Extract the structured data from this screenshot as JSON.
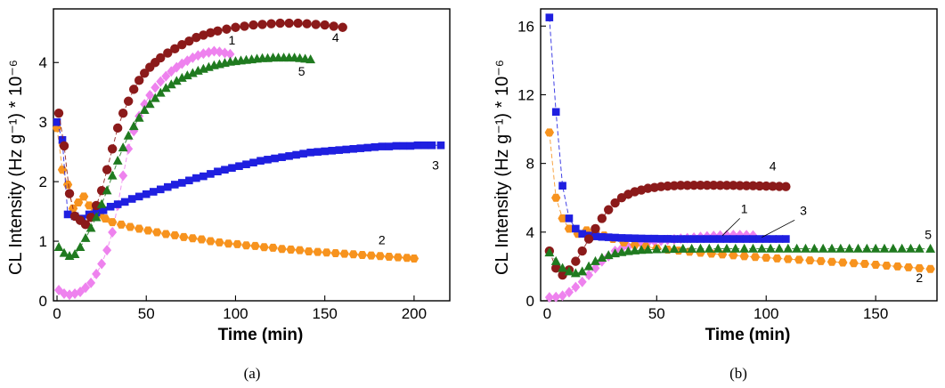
{
  "colors": {
    "1": "#ee82ee",
    "2": "#f7931e",
    "3": "#1f1fe0",
    "4": "#8b1a1a",
    "5": "#1f7a1f"
  },
  "chart_data": [
    {
      "panel": "(a)",
      "type": "scatter",
      "title": "",
      "xlabel": "Time (min)",
      "ylabel": "CL Intensity (Hz g⁻¹) * 10⁻⁶",
      "xlim": [
        -2,
        220
      ],
      "ylim": [
        0,
        4.9
      ],
      "x_ticks": [
        0,
        50,
        100,
        150,
        200
      ],
      "y_ticks": [
        0,
        1,
        2,
        3,
        4
      ],
      "series": [
        {
          "name": "1",
          "marker": "diamond",
          "x": [
            1,
            4,
            7,
            10,
            13,
            16,
            19,
            22,
            25,
            28,
            31,
            34,
            37,
            40,
            43,
            46,
            49,
            52,
            55,
            58,
            61,
            64,
            67,
            70,
            73,
            76,
            79,
            82,
            85,
            88,
            91,
            94,
            97
          ],
          "y": [
            0.18,
            0.12,
            0.1,
            0.12,
            0.15,
            0.22,
            0.3,
            0.45,
            0.62,
            0.85,
            1.15,
            1.6,
            2.1,
            2.55,
            2.85,
            3.1,
            3.3,
            3.45,
            3.58,
            3.68,
            3.77,
            3.85,
            3.92,
            3.98,
            4.03,
            4.08,
            4.12,
            4.15,
            4.17,
            4.19,
            4.18,
            4.16,
            4.14
          ]
        },
        {
          "name": "2",
          "marker": "hexagon",
          "x": [
            0,
            3,
            6,
            9,
            12,
            15,
            18,
            21,
            24,
            27,
            31,
            36,
            41,
            46,
            51,
            56,
            61,
            66,
            71,
            76,
            81,
            86,
            91,
            96,
            101,
            106,
            111,
            116,
            121,
            126,
            131,
            136,
            141,
            146,
            151,
            156,
            161,
            166,
            171,
            176,
            181,
            186,
            191,
            196,
            200
          ],
          "y": [
            2.9,
            2.2,
            1.95,
            1.55,
            1.65,
            1.75,
            1.6,
            1.5,
            1.45,
            1.38,
            1.32,
            1.28,
            1.24,
            1.21,
            1.18,
            1.15,
            1.12,
            1.1,
            1.07,
            1.05,
            1.03,
            1.0,
            0.98,
            0.96,
            0.95,
            0.93,
            0.92,
            0.9,
            0.89,
            0.87,
            0.86,
            0.85,
            0.83,
            0.82,
            0.81,
            0.8,
            0.79,
            0.78,
            0.77,
            0.76,
            0.75,
            0.74,
            0.73,
            0.72,
            0.71
          ]
        },
        {
          "name": "3",
          "marker": "square",
          "x": [
            0,
            3,
            6,
            10,
            14,
            18,
            22,
            26,
            30,
            34,
            38,
            42,
            46,
            50,
            54,
            58,
            62,
            66,
            70,
            74,
            78,
            82,
            86,
            90,
            94,
            98,
            102,
            106,
            110,
            114,
            118,
            122,
            126,
            130,
            134,
            138,
            142,
            146,
            150,
            154,
            158,
            162,
            166,
            170,
            174,
            178,
            182,
            186,
            190,
            194,
            198,
            202,
            206,
            210,
            215
          ],
          "y": [
            3.0,
            2.7,
            1.45,
            1.42,
            1.38,
            1.45,
            1.48,
            1.52,
            1.58,
            1.62,
            1.66,
            1.71,
            1.75,
            1.79,
            1.83,
            1.87,
            1.91,
            1.95,
            1.98,
            2.02,
            2.06,
            2.09,
            2.13,
            2.17,
            2.2,
            2.23,
            2.26,
            2.29,
            2.32,
            2.35,
            2.37,
            2.39,
            2.41,
            2.43,
            2.45,
            2.47,
            2.49,
            2.5,
            2.51,
            2.52,
            2.53,
            2.54,
            2.55,
            2.56,
            2.57,
            2.58,
            2.59,
            2.59,
            2.6,
            2.6,
            2.6,
            2.61,
            2.61,
            2.61,
            2.61
          ]
        },
        {
          "name": "4",
          "marker": "circle",
          "x": [
            1,
            4,
            7,
            10,
            13,
            16,
            19,
            22,
            25,
            28,
            31,
            34,
            37,
            40,
            43,
            46,
            49,
            52,
            55,
            58,
            62,
            66,
            70,
            74,
            78,
            82,
            86,
            90,
            95,
            100,
            105,
            110,
            115,
            120,
            125,
            130,
            135,
            140,
            145,
            150,
            155,
            160
          ],
          "y": [
            3.15,
            2.6,
            1.8,
            1.42,
            1.35,
            1.28,
            1.4,
            1.6,
            1.85,
            2.2,
            2.55,
            2.9,
            3.15,
            3.35,
            3.55,
            3.7,
            3.82,
            3.92,
            4.0,
            4.08,
            4.16,
            4.23,
            4.3,
            4.36,
            4.42,
            4.46,
            4.5,
            4.53,
            4.56,
            4.59,
            4.61,
            4.63,
            4.64,
            4.65,
            4.66,
            4.66,
            4.66,
            4.65,
            4.64,
            4.63,
            4.61,
            4.59
          ]
        },
        {
          "name": "5",
          "marker": "triangle",
          "x": [
            1,
            4,
            7,
            10,
            13,
            16,
            19,
            22,
            25,
            28,
            31,
            34,
            37,
            40,
            43,
            46,
            49,
            52,
            55,
            58,
            61,
            64,
            67,
            70,
            73,
            76,
            79,
            82,
            85,
            88,
            91,
            94,
            97,
            100,
            103,
            106,
            109,
            112,
            115,
            118,
            121,
            124,
            127,
            130,
            133,
            136,
            139,
            142
          ],
          "y": [
            0.9,
            0.8,
            0.75,
            0.78,
            0.9,
            1.05,
            1.22,
            1.4,
            1.62,
            1.85,
            2.1,
            2.35,
            2.57,
            2.77,
            2.93,
            3.07,
            3.2,
            3.3,
            3.4,
            3.49,
            3.57,
            3.63,
            3.69,
            3.74,
            3.78,
            3.82,
            3.86,
            3.89,
            3.92,
            3.95,
            3.97,
            3.99,
            4.01,
            4.02,
            4.03,
            4.04,
            4.05,
            4.06,
            4.07,
            4.07,
            4.08,
            4.08,
            4.08,
            4.08,
            4.08,
            4.07,
            4.06,
            4.05
          ]
        }
      ],
      "curve_labels": [
        "1",
        "2",
        "3",
        "4",
        "5"
      ],
      "curve_label_positions_data": [
        {
          "name": "1",
          "x": 98,
          "y": 4.3
        },
        {
          "name": "2",
          "x": 182,
          "y": 0.95
        },
        {
          "name": "3",
          "x": 212,
          "y": 2.2
        },
        {
          "name": "4",
          "x": 156,
          "y": 4.35
        },
        {
          "name": "5",
          "x": 137,
          "y": 3.78
        }
      ]
    },
    {
      "panel": "(b)",
      "type": "scatter",
      "title": "",
      "xlabel": "Time (min)",
      "ylabel": "CL Intensity (Hz g⁻¹) * 10⁻⁶",
      "xlim": [
        -3,
        178
      ],
      "ylim": [
        0,
        17
      ],
      "x_ticks": [
        0,
        50,
        100,
        150
      ],
      "y_ticks": [
        0,
        4,
        8,
        12,
        16
      ],
      "series": [
        {
          "name": "1",
          "marker": "diamond",
          "x": [
            1,
            4,
            7,
            10,
            13,
            16,
            19,
            22,
            25,
            28,
            31,
            34,
            37,
            40,
            43,
            46,
            49,
            52,
            55,
            58,
            61,
            64,
            67,
            70,
            73,
            76,
            79,
            82,
            85,
            88,
            91,
            94
          ],
          "y": [
            0.2,
            0.22,
            0.3,
            0.5,
            0.8,
            1.1,
            1.5,
            1.9,
            2.3,
            2.6,
            2.9,
            3.05,
            3.15,
            3.25,
            3.33,
            3.4,
            3.45,
            3.5,
            3.55,
            3.58,
            3.62,
            3.65,
            3.68,
            3.72,
            3.75,
            3.78,
            3.8,
            3.82,
            3.83,
            3.83,
            3.82,
            3.8
          ]
        },
        {
          "name": "2",
          "marker": "hexagon",
          "x": [
            1,
            4,
            7,
            10,
            14,
            18,
            22,
            26,
            30,
            35,
            40,
            45,
            50,
            55,
            60,
            65,
            70,
            75,
            80,
            85,
            90,
            95,
            100,
            105,
            110,
            115,
            120,
            125,
            130,
            135,
            140,
            145,
            150,
            155,
            160,
            165,
            170,
            175
          ],
          "y": [
            9.8,
            6.0,
            4.8,
            4.2,
            3.9,
            4.1,
            4.0,
            3.8,
            3.6,
            3.4,
            3.25,
            3.15,
            3.05,
            2.98,
            2.92,
            2.86,
            2.8,
            2.75,
            2.7,
            2.65,
            2.6,
            2.55,
            2.51,
            2.47,
            2.43,
            2.39,
            2.35,
            2.31,
            2.27,
            2.23,
            2.19,
            2.15,
            2.1,
            2.05,
            2.0,
            1.95,
            1.9,
            1.85
          ]
        },
        {
          "name": "3",
          "marker": "square",
          "x": [
            1,
            4,
            7,
            10,
            13,
            16,
            19,
            22,
            25,
            28,
            31,
            34,
            37,
            40,
            43,
            46,
            49,
            52,
            55,
            58,
            61,
            64,
            67,
            70,
            73,
            76,
            79,
            82,
            85,
            88,
            91,
            94,
            97,
            100,
            103,
            106,
            109
          ],
          "y": [
            16.5,
            11.0,
            6.7,
            4.8,
            4.2,
            3.9,
            3.8,
            3.75,
            3.72,
            3.7,
            3.68,
            3.66,
            3.65,
            3.64,
            3.63,
            3.62,
            3.62,
            3.61,
            3.61,
            3.6,
            3.6,
            3.6,
            3.6,
            3.6,
            3.6,
            3.6,
            3.6,
            3.6,
            3.6,
            3.6,
            3.6,
            3.6,
            3.6,
            3.6,
            3.6,
            3.6,
            3.6
          ]
        },
        {
          "name": "4",
          "marker": "circle",
          "x": [
            1,
            4,
            7,
            10,
            13,
            16,
            19,
            22,
            25,
            28,
            31,
            34,
            37,
            40,
            43,
            46,
            49,
            52,
            55,
            58,
            61,
            64,
            67,
            70,
            73,
            76,
            79,
            82,
            85,
            88,
            91,
            94,
            97,
            100,
            103,
            106,
            109
          ],
          "y": [
            2.9,
            1.9,
            1.5,
            1.8,
            2.3,
            2.9,
            3.6,
            4.2,
            4.8,
            5.3,
            5.7,
            6.0,
            6.2,
            6.35,
            6.45,
            6.55,
            6.6,
            6.65,
            6.68,
            6.7,
            6.72,
            6.72,
            6.73,
            6.73,
            6.73,
            6.73,
            6.72,
            6.72,
            6.72,
            6.71,
            6.7,
            6.7,
            6.69,
            6.68,
            6.67,
            6.66,
            6.65
          ]
        },
        {
          "name": "5",
          "marker": "triangle",
          "x": [
            1,
            4,
            7,
            10,
            13,
            16,
            19,
            22,
            25,
            28,
            31,
            34,
            37,
            40,
            43,
            46,
            50,
            54,
            58,
            62,
            66,
            70,
            74,
            78,
            82,
            86,
            90,
            94,
            98,
            102,
            106,
            110,
            114,
            118,
            122,
            126,
            130,
            134,
            138,
            142,
            146,
            150,
            154,
            158,
            162,
            166,
            170,
            175
          ],
          "y": [
            2.8,
            2.3,
            1.9,
            1.7,
            1.6,
            1.7,
            2.0,
            2.3,
            2.5,
            2.65,
            2.75,
            2.82,
            2.88,
            2.92,
            2.95,
            2.97,
            2.99,
            3.0,
            3.01,
            3.02,
            3.02,
            3.03,
            3.03,
            3.03,
            3.03,
            3.03,
            3.03,
            3.03,
            3.03,
            3.03,
            3.03,
            3.03,
            3.03,
            3.03,
            3.03,
            3.03,
            3.03,
            3.03,
            3.03,
            3.03,
            3.03,
            3.03,
            3.03,
            3.03,
            3.03,
            3.03,
            3.03,
            3.02
          ]
        }
      ],
      "curve_labels": [
        "1",
        "2",
        "3",
        "4",
        "5"
      ],
      "curve_label_positions_data": [
        {
          "name": "1",
          "x": 90,
          "y": 5.1
        },
        {
          "name": "2",
          "x": 170,
          "y": 1.1
        },
        {
          "name": "3",
          "x": 117,
          "y": 5.0
        },
        {
          "name": "4",
          "x": 103,
          "y": 7.6
        },
        {
          "name": "5",
          "x": 174,
          "y": 3.6
        }
      ]
    }
  ]
}
